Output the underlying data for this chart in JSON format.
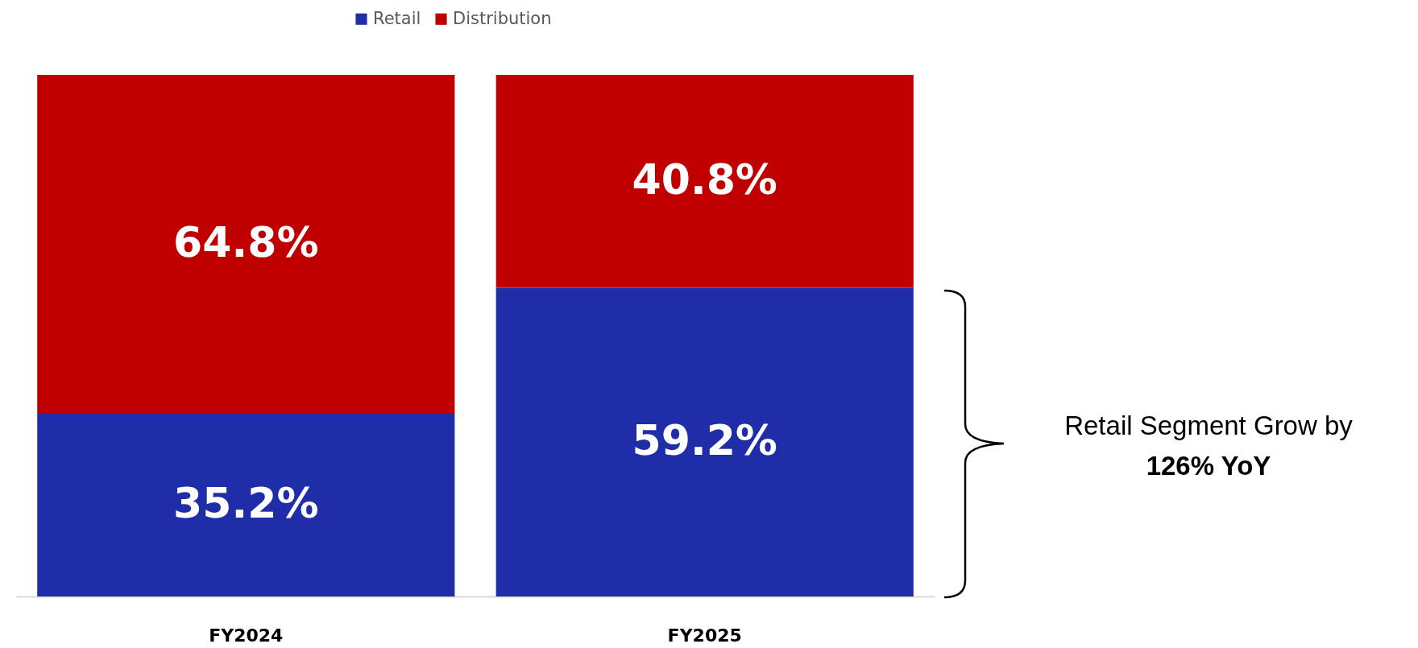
{
  "chart_data": {
    "type": "bar",
    "stacked": true,
    "categories": [
      "FY2024",
      "FY2025"
    ],
    "ylim": [
      0,
      100
    ],
    "legend": "top",
    "grid": false,
    "series": [
      {
        "name": "Retail",
        "color": "#1f2ea8",
        "values": [
          35.2,
          59.2
        ],
        "value_labels": [
          "35.2%",
          "59.2%"
        ]
      },
      {
        "name": "Distribution",
        "color": "#c00000",
        "values": [
          64.8,
          40.8
        ],
        "value_labels": [
          "64.8%",
          "40.8%"
        ]
      }
    ],
    "annotations": [
      "Retail Segment Grow by",
      "126% YoY"
    ]
  }
}
